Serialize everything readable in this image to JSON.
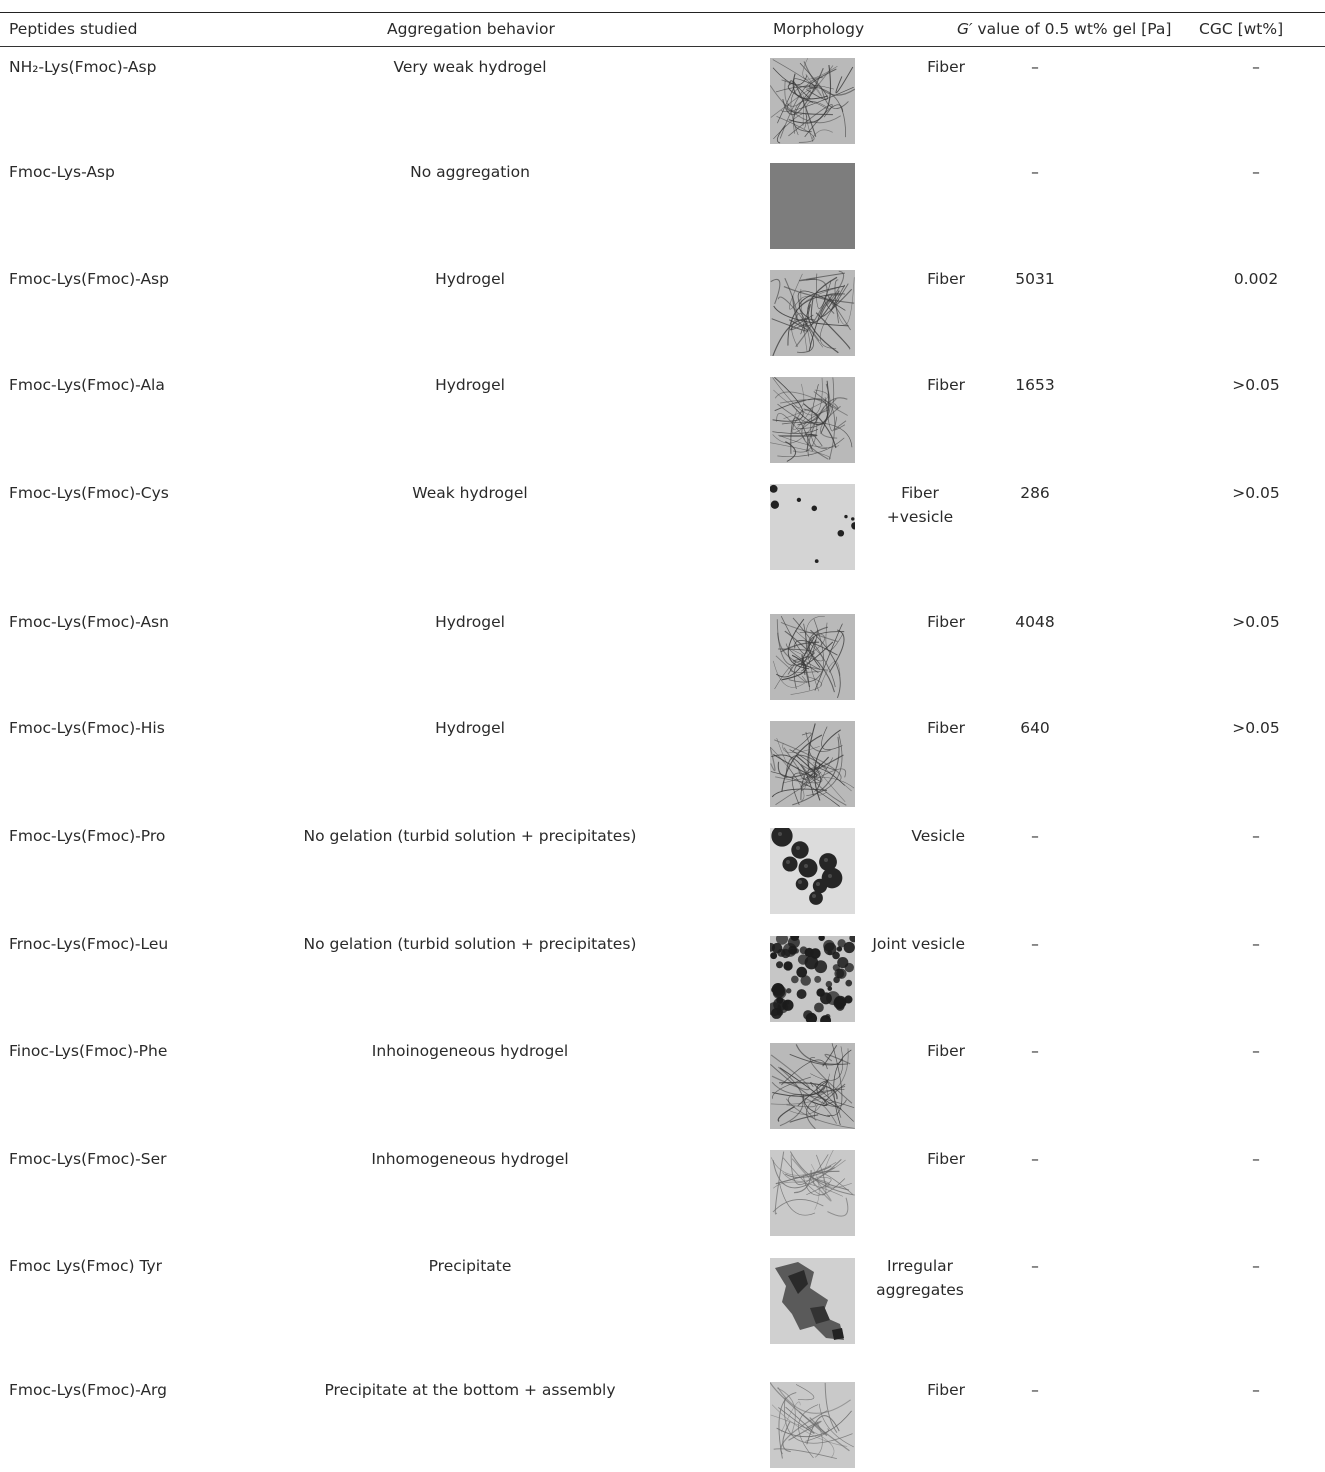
{
  "table": {
    "headers": {
      "peptides": "Peptides studied",
      "aggregation": "Aggregation behavior",
      "morphology": "Morphology",
      "g_value_prefix": "G′",
      "g_value_rest": " value of 0.5 wt% gel [Pa]",
      "cgc": "CGC [wt%]"
    },
    "rows": [
      {
        "peptide": "NH₂-Lys(Fmoc)-Asp",
        "aggregation": "Very weak hydrogel",
        "morphology": "Fiber",
        "image": "fiber-micrograph",
        "g_value": "–",
        "cgc": "–"
      },
      {
        "peptide": "Fmoc-Lys-Asp",
        "aggregation": "No aggregation",
        "morphology": "",
        "image": "blank-micrograph",
        "g_value": "–",
        "cgc": "–"
      },
      {
        "peptide": "Fmoc-Lys(Fmoc)-Asp",
        "aggregation": "Hydrogel",
        "morphology": "Fiber",
        "image": "fiber-micrograph",
        "g_value": "5031",
        "cgc": "0.002"
      },
      {
        "peptide": "Fmoc-Lys(Fmoc)-Ala",
        "aggregation": "Hydrogel",
        "morphology": "Fiber",
        "image": "fiber-micrograph",
        "g_value": "1653",
        "cgc": ">0.05"
      },
      {
        "peptide": "Fmoc-Lys(Fmoc)-Cys",
        "aggregation": "Weak hydrogel",
        "morphology": "Fiber\n+vesicle",
        "image": "sparse-dots-micrograph",
        "g_value": "286",
        "cgc": ">0.05"
      },
      {
        "peptide": "Fmoc-Lys(Fmoc)-Asn",
        "aggregation": "Hydrogel",
        "morphology": "Fiber",
        "image": "fiber-micrograph",
        "g_value": "4048",
        "cgc": ">0.05"
      },
      {
        "peptide": "Fmoc-Lys(Fmoc)-His",
        "aggregation": "Hydrogel",
        "morphology": "Fiber",
        "image": "fiber-micrograph",
        "g_value": "640",
        "cgc": ">0.05"
      },
      {
        "peptide": "Fmoc-Lys(Fmoc)-Pro",
        "aggregation": "No gelation (turbid solution + precipitates)",
        "morphology": "Vesicle",
        "image": "vesicle-micrograph",
        "g_value": "–",
        "cgc": "–"
      },
      {
        "peptide": "Frnoc-Lys(Fmoc)-Leu",
        "aggregation": "No gelation (turbid solution + precipitates)",
        "morphology": "Joint vesicle",
        "image": "joint-vesicle-micrograph",
        "g_value": "–",
        "cgc": "–"
      },
      {
        "peptide": "Finoc-Lys(Fmoc)-Phe",
        "aggregation": "Inhoinogeneous hydrogel",
        "morphology": "Fiber",
        "image": "fiber-micrograph",
        "g_value": "–",
        "cgc": "–"
      },
      {
        "peptide": "Fmoc-Lys(Fmoc)-Ser",
        "aggregation": "Inhomogeneous hydrogel",
        "morphology": "Fiber",
        "image": "light-fiber-micrograph",
        "g_value": "–",
        "cgc": "–"
      },
      {
        "peptide": "Fmoc Lys(Fmoc) Tyr",
        "aggregation": "Precipitate",
        "morphology": "Irregular\naggregates",
        "image": "aggregate-micrograph",
        "g_value": "–",
        "cgc": "–"
      },
      {
        "peptide": "Fmoc-Lys(Fmoc)-Arg",
        "aggregation": "Precipitate at the bottom + assembly",
        "morphology": "Fiber",
        "image": "light-fiber-micrograph",
        "g_value": "–",
        "cgc": "–"
      }
    ]
  }
}
